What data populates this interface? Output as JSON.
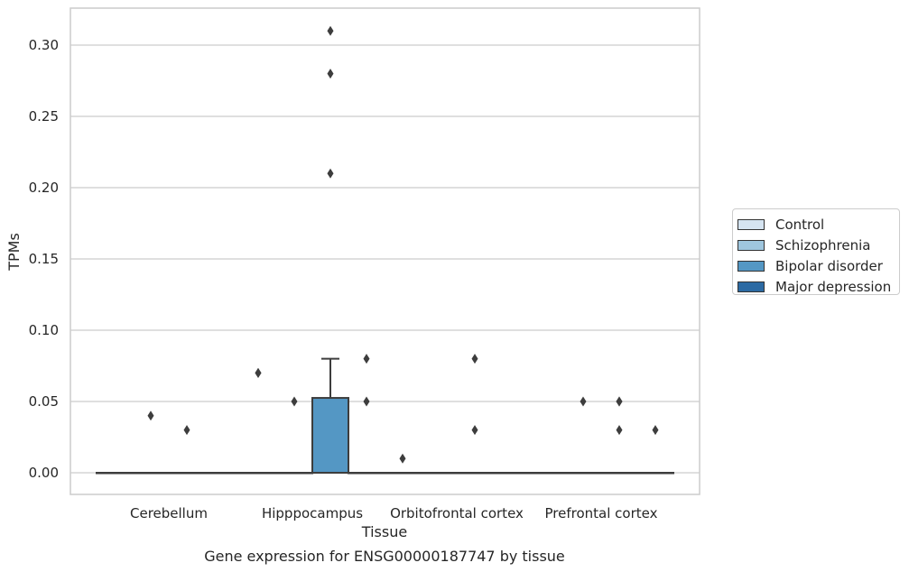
{
  "chart_data": {
    "type": "box",
    "title": "",
    "caption": "Gene expression for ENSG00000187747 by tissue",
    "xlabel": "Tissue",
    "ylabel": "TPMs",
    "ylim": [
      -0.015,
      0.325
    ],
    "yticks": [
      "0.00",
      "0.05",
      "0.10",
      "0.15",
      "0.20",
      "0.25",
      "0.30"
    ],
    "grid": true,
    "legend_position": "right",
    "categories": [
      "Cerebellum",
      "Hipppocampus",
      "Orbitofrontal cortex",
      "Prefrontal cortex"
    ],
    "series": [
      {
        "name": "Control",
        "color": "#d5e4f1"
      },
      {
        "name": "Schizophrenia",
        "color": "#9fc6de"
      },
      {
        "name": "Bipolar disorder",
        "color": "#5497c4"
      },
      {
        "name": "Major depression",
        "color": "#2c6aa3"
      }
    ],
    "boxes": [
      {
        "category": "Cerebellum",
        "series": "Control",
        "q1": 0,
        "median": 0,
        "q3": 0,
        "whisker_low": 0,
        "whisker_high": 0,
        "outliers": []
      },
      {
        "category": "Cerebellum",
        "series": "Schizophrenia",
        "q1": 0,
        "median": 0,
        "q3": 0,
        "whisker_low": 0,
        "whisker_high": 0,
        "outliers": [
          0.04
        ]
      },
      {
        "category": "Cerebellum",
        "series": "Bipolar disorder",
        "q1": 0,
        "median": 0,
        "q3": 0,
        "whisker_low": 0,
        "whisker_high": 0,
        "outliers": [
          0.03
        ]
      },
      {
        "category": "Cerebellum",
        "series": "Major depression",
        "q1": 0,
        "median": 0,
        "q3": 0,
        "whisker_low": 0,
        "whisker_high": 0,
        "outliers": []
      },
      {
        "category": "Hipppocampus",
        "series": "Control",
        "q1": 0,
        "median": 0,
        "q3": 0,
        "whisker_low": 0,
        "whisker_high": 0,
        "outliers": [
          0.07,
          0.07
        ]
      },
      {
        "category": "Hipppocampus",
        "series": "Schizophrenia",
        "q1": 0,
        "median": 0,
        "q3": 0,
        "whisker_low": 0,
        "whisker_high": 0,
        "outliers": [
          0.05
        ]
      },
      {
        "category": "Hipppocampus",
        "series": "Bipolar disorder",
        "q1": 0,
        "median": 0,
        "q3": 0.0525,
        "whisker_low": 0,
        "whisker_high": 0.08,
        "outliers": [
          0.21,
          0.28,
          0.31
        ]
      },
      {
        "category": "Hipppocampus",
        "series": "Major depression",
        "q1": 0,
        "median": 0,
        "q3": 0,
        "whisker_low": 0,
        "whisker_high": 0,
        "outliers": [
          0.05,
          0.08
        ]
      },
      {
        "category": "Orbitofrontal cortex",
        "series": "Control",
        "q1": 0,
        "median": 0,
        "q3": 0,
        "whisker_low": 0,
        "whisker_high": 0,
        "outliers": [
          0.01
        ]
      },
      {
        "category": "Orbitofrontal cortex",
        "series": "Schizophrenia",
        "q1": 0,
        "median": 0,
        "q3": 0,
        "whisker_low": 0,
        "whisker_high": 0,
        "outliers": []
      },
      {
        "category": "Orbitofrontal cortex",
        "series": "Bipolar disorder",
        "q1": 0,
        "median": 0,
        "q3": 0,
        "whisker_low": 0,
        "whisker_high": 0,
        "outliers": [
          0.03,
          0.08
        ]
      },
      {
        "category": "Orbitofrontal cortex",
        "series": "Major depression",
        "q1": 0,
        "median": 0,
        "q3": 0,
        "whisker_low": 0,
        "whisker_high": 0,
        "outliers": []
      },
      {
        "category": "Prefrontal cortex",
        "series": "Control",
        "q1": 0,
        "median": 0,
        "q3": 0,
        "whisker_low": 0,
        "whisker_high": 0,
        "outliers": []
      },
      {
        "category": "Prefrontal cortex",
        "series": "Schizophrenia",
        "q1": 0,
        "median": 0,
        "q3": 0,
        "whisker_low": 0,
        "whisker_high": 0,
        "outliers": [
          0.05
        ]
      },
      {
        "category": "Prefrontal cortex",
        "series": "Bipolar disorder",
        "q1": 0,
        "median": 0,
        "q3": 0,
        "whisker_low": 0,
        "whisker_high": 0,
        "outliers": [
          0.05,
          0.05,
          0.03
        ]
      },
      {
        "category": "Prefrontal cortex",
        "series": "Major depression",
        "q1": 0,
        "median": 0,
        "q3": 0,
        "whisker_low": 0,
        "whisker_high": 0,
        "outliers": [
          0.03
        ]
      }
    ]
  }
}
